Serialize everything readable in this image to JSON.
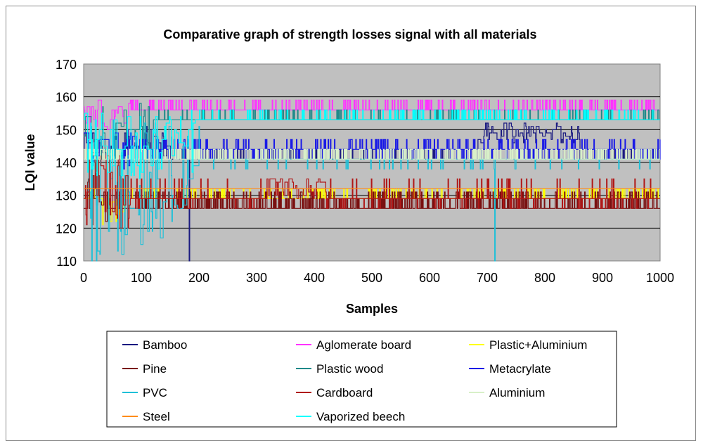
{
  "chart_data": {
    "type": "line",
    "title": "Comparative graph of strength losses signal with all materials",
    "xlabel": "Samples",
    "ylabel": "LQI value",
    "xlim": [
      0,
      1000
    ],
    "ylim": [
      110,
      170
    ],
    "x_ticks": [
      "0",
      "100",
      "200",
      "300",
      "400",
      "500",
      "600",
      "700",
      "800",
      "900",
      "1000"
    ],
    "y_ticks": [
      "170",
      "160",
      "150",
      "140",
      "130",
      "120",
      "110"
    ],
    "grid": true,
    "legend_position": "bottom",
    "series": [
      {
        "name": "Bamboo",
        "color": "#1a1a80",
        "base": 141,
        "alt": [
          144
        ],
        "switch": 0.12,
        "ranges": [
          [
            0,
            150,
            141,
            151
          ],
          [
            680,
            860,
            146,
            152
          ]
        ],
        "dips": [
          [
            183,
            110
          ]
        ]
      },
      {
        "name": "Aglomerate board",
        "color": "#ff33ff",
        "base": 156,
        "alt": [
          159
        ],
        "switch": 0.18,
        "ranges": [
          [
            0,
            80,
            150,
            159
          ]
        ],
        "dips": []
      },
      {
        "name": "Plastic+Aluminium",
        "color": "#ffff00",
        "base": 129,
        "alt": [
          132
        ],
        "switch": 0.18,
        "ranges": [
          [
            20,
            70,
            120,
            130
          ]
        ],
        "dips": []
      },
      {
        "name": "Pine",
        "color": "#7a1010",
        "base": 126,
        "alt": [
          129,
          131
        ],
        "switch": 0.3,
        "ranges": [
          [
            0,
            40,
            120,
            140
          ]
        ],
        "dips": []
      },
      {
        "name": "Plastic wood",
        "color": "#1f8a8a",
        "base": 153,
        "alt": [
          156
        ],
        "switch": 0.08,
        "ranges": [
          [
            0,
            120,
            141,
            159
          ]
        ],
        "dips": []
      },
      {
        "name": "Metacrylate",
        "color": "#1a1ae6",
        "base": 144,
        "alt": [
          147,
          141
        ],
        "switch": 0.28,
        "ranges": [
          [
            0,
            90,
            138,
            150
          ]
        ],
        "dips": []
      },
      {
        "name": "PVC",
        "color": "#1fc0d8",
        "base": 141,
        "alt": [
          138
        ],
        "switch": 0.05,
        "ranges": [
          [
            0,
            200,
            110,
            153
          ]
        ],
        "dips": [
          [
            14,
            110
          ],
          [
            22,
            110
          ],
          [
            713,
            110
          ]
        ]
      },
      {
        "name": "Cardboard",
        "color": "#b01818",
        "base": 129,
        "alt": [
          126,
          135
        ],
        "switch": 0.12,
        "ranges": [
          [
            0,
            80,
            120,
            144
          ],
          [
            320,
            420,
            129,
            135
          ]
        ],
        "dips": []
      },
      {
        "name": "Aluminium",
        "color": "#d8f0c8",
        "base": 141,
        "alt": [
          144
        ],
        "switch": 0.3,
        "ranges": [],
        "dips": []
      },
      {
        "name": "Steel",
        "color": "#ff8c1a",
        "base": 132,
        "alt": [],
        "switch": 0,
        "ranges": [],
        "dips": []
      },
      {
        "name": "Vaporized beech",
        "color": "#00ffff",
        "base": 153,
        "alt": [
          156
        ],
        "switch": 0.14,
        "ranges": [
          [
            0,
            200,
            135,
            156
          ]
        ],
        "dips": []
      }
    ]
  }
}
